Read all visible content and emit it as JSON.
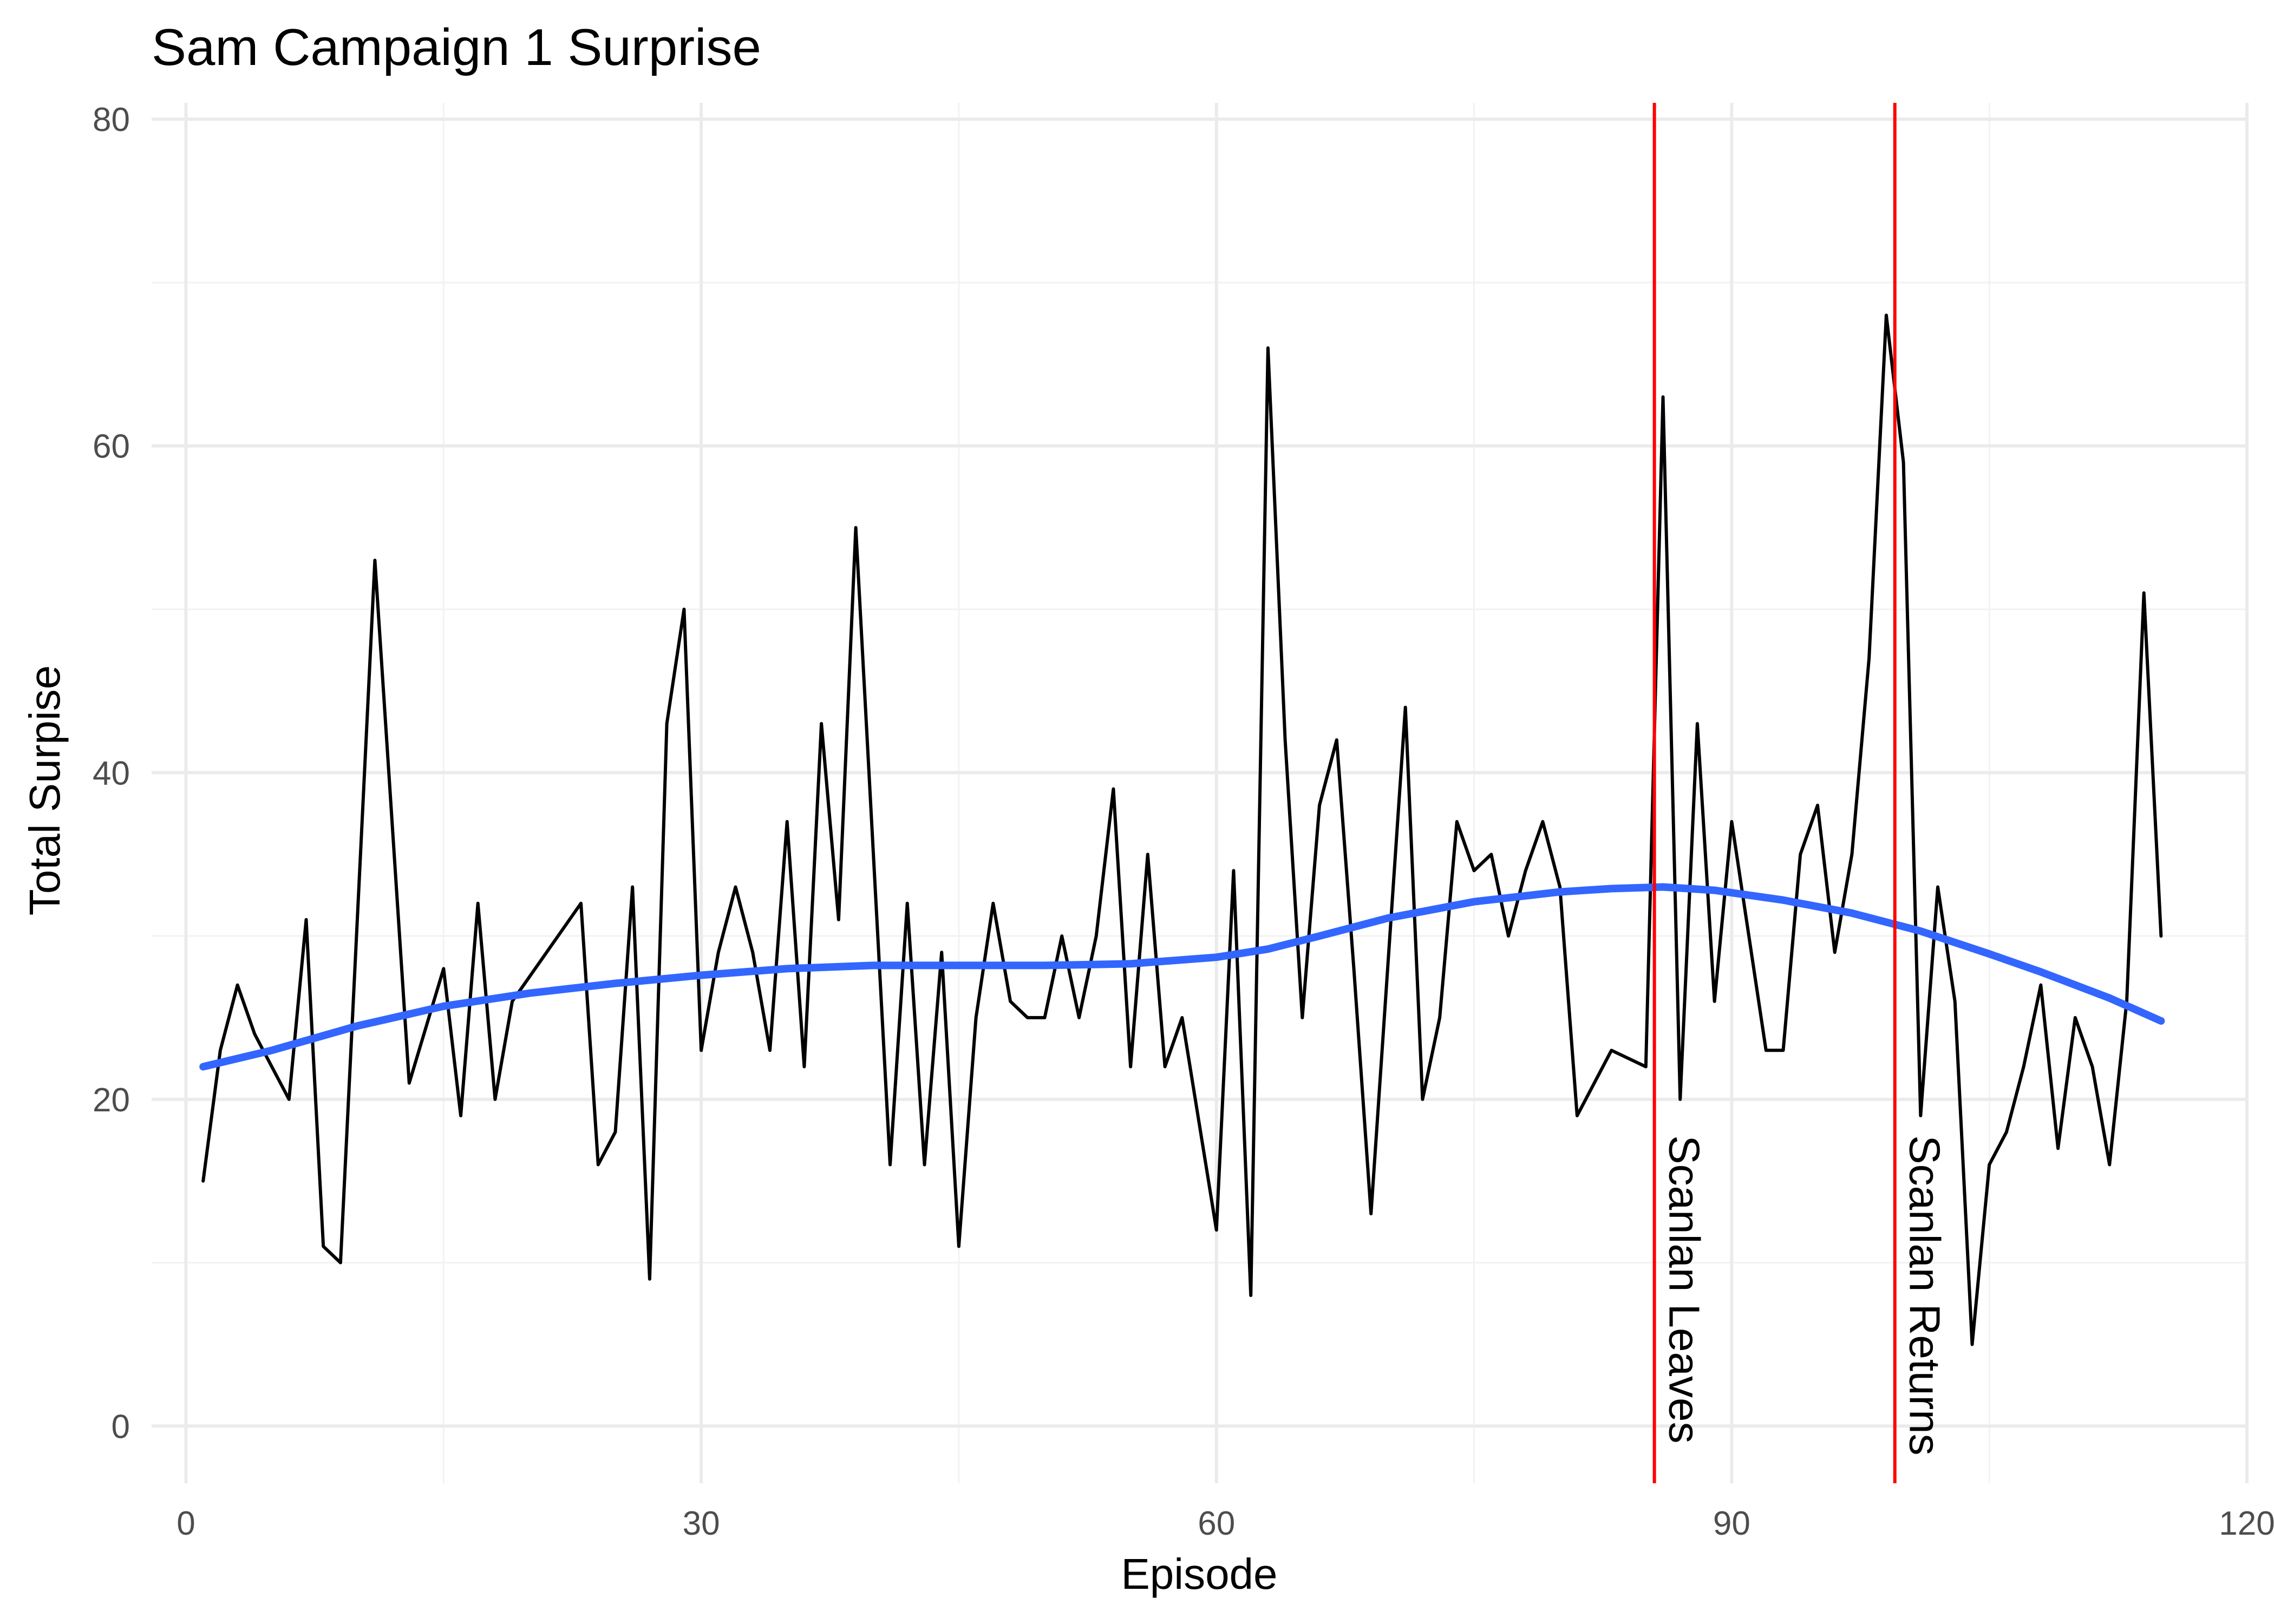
{
  "chart_data": {
    "type": "line",
    "title": "Sam Campaign 1 Surprise",
    "xlabel": "Episode",
    "ylabel": "Total Surpise",
    "xlim": [
      -2,
      120
    ],
    "ylim": [
      -3.5,
      81
    ],
    "x_ticks": [
      0,
      30,
      60,
      90,
      120
    ],
    "y_ticks": [
      0,
      20,
      40,
      60,
      80
    ],
    "grid": true,
    "legend": "none",
    "series": [
      {
        "color": "#000000",
        "x": [
          1,
          2,
          3,
          4,
          5,
          6,
          7,
          8,
          9,
          11,
          13,
          15,
          16,
          17,
          18,
          19,
          23,
          24,
          25,
          26,
          27,
          28,
          29,
          30,
          31,
          32,
          33,
          34,
          35,
          36,
          37,
          38,
          39,
          41,
          42,
          43,
          44,
          45,
          46,
          47,
          48,
          49,
          50,
          51,
          52,
          53,
          54,
          55,
          56,
          57,
          58,
          60,
          61,
          62,
          63,
          64,
          65,
          66,
          67,
          68,
          69,
          71,
          72,
          73,
          74,
          75,
          76,
          77,
          78,
          79,
          80,
          81,
          83,
          85,
          86,
          87,
          88,
          89,
          90,
          91,
          92,
          93,
          94,
          95,
          96,
          97,
          98,
          99,
          100,
          101,
          102,
          103,
          104,
          105,
          106,
          107,
          108,
          109,
          110,
          111,
          112,
          113,
          114,
          115
        ],
        "values": [
          15,
          23,
          27,
          24,
          22,
          20,
          31,
          11,
          10,
          53,
          21,
          28,
          19,
          32,
          20,
          26,
          32,
          16,
          18,
          33,
          9,
          43,
          50,
          23,
          29,
          33,
          29,
          23,
          37,
          22,
          43,
          31,
          55,
          16,
          32,
          16,
          29,
          11,
          25,
          32,
          26,
          25,
          25,
          30,
          25,
          30,
          39,
          22,
          35,
          22,
          25,
          12,
          34,
          8,
          66,
          42,
          25,
          38,
          42,
          28,
          13,
          44,
          20,
          25,
          37,
          34,
          35,
          30,
          34,
          37,
          33,
          19,
          23,
          22,
          63,
          20,
          43,
          26,
          37,
          30,
          23,
          23,
          35,
          38,
          29,
          35,
          47,
          68,
          59,
          19,
          33,
          26,
          5,
          16,
          18,
          22,
          27,
          17,
          25,
          22,
          16,
          26,
          51,
          30
        ]
      },
      {
        "color": "#3366ff",
        "x": [
          1,
          5,
          10,
          15,
          20,
          25,
          30,
          35,
          40,
          45,
          50,
          55,
          60,
          63,
          66,
          70,
          75,
          80,
          83,
          86,
          89,
          93,
          97,
          101,
          105,
          108,
          112,
          115
        ],
        "values": [
          22.0,
          23.0,
          24.5,
          25.7,
          26.5,
          27.1,
          27.6,
          28.0,
          28.2,
          28.2,
          28.2,
          28.3,
          28.7,
          29.2,
          30.0,
          31.1,
          32.1,
          32.7,
          32.9,
          33.0,
          32.8,
          32.2,
          31.4,
          30.3,
          28.9,
          27.8,
          26.2,
          24.8
        ]
      }
    ],
    "vlines": [
      {
        "x": 85.5,
        "label": "Scanlan Leaves",
        "color": "#ff0000"
      },
      {
        "x": 99.5,
        "label": "Scanlan Returns",
        "color": "#ff0000"
      }
    ]
  }
}
